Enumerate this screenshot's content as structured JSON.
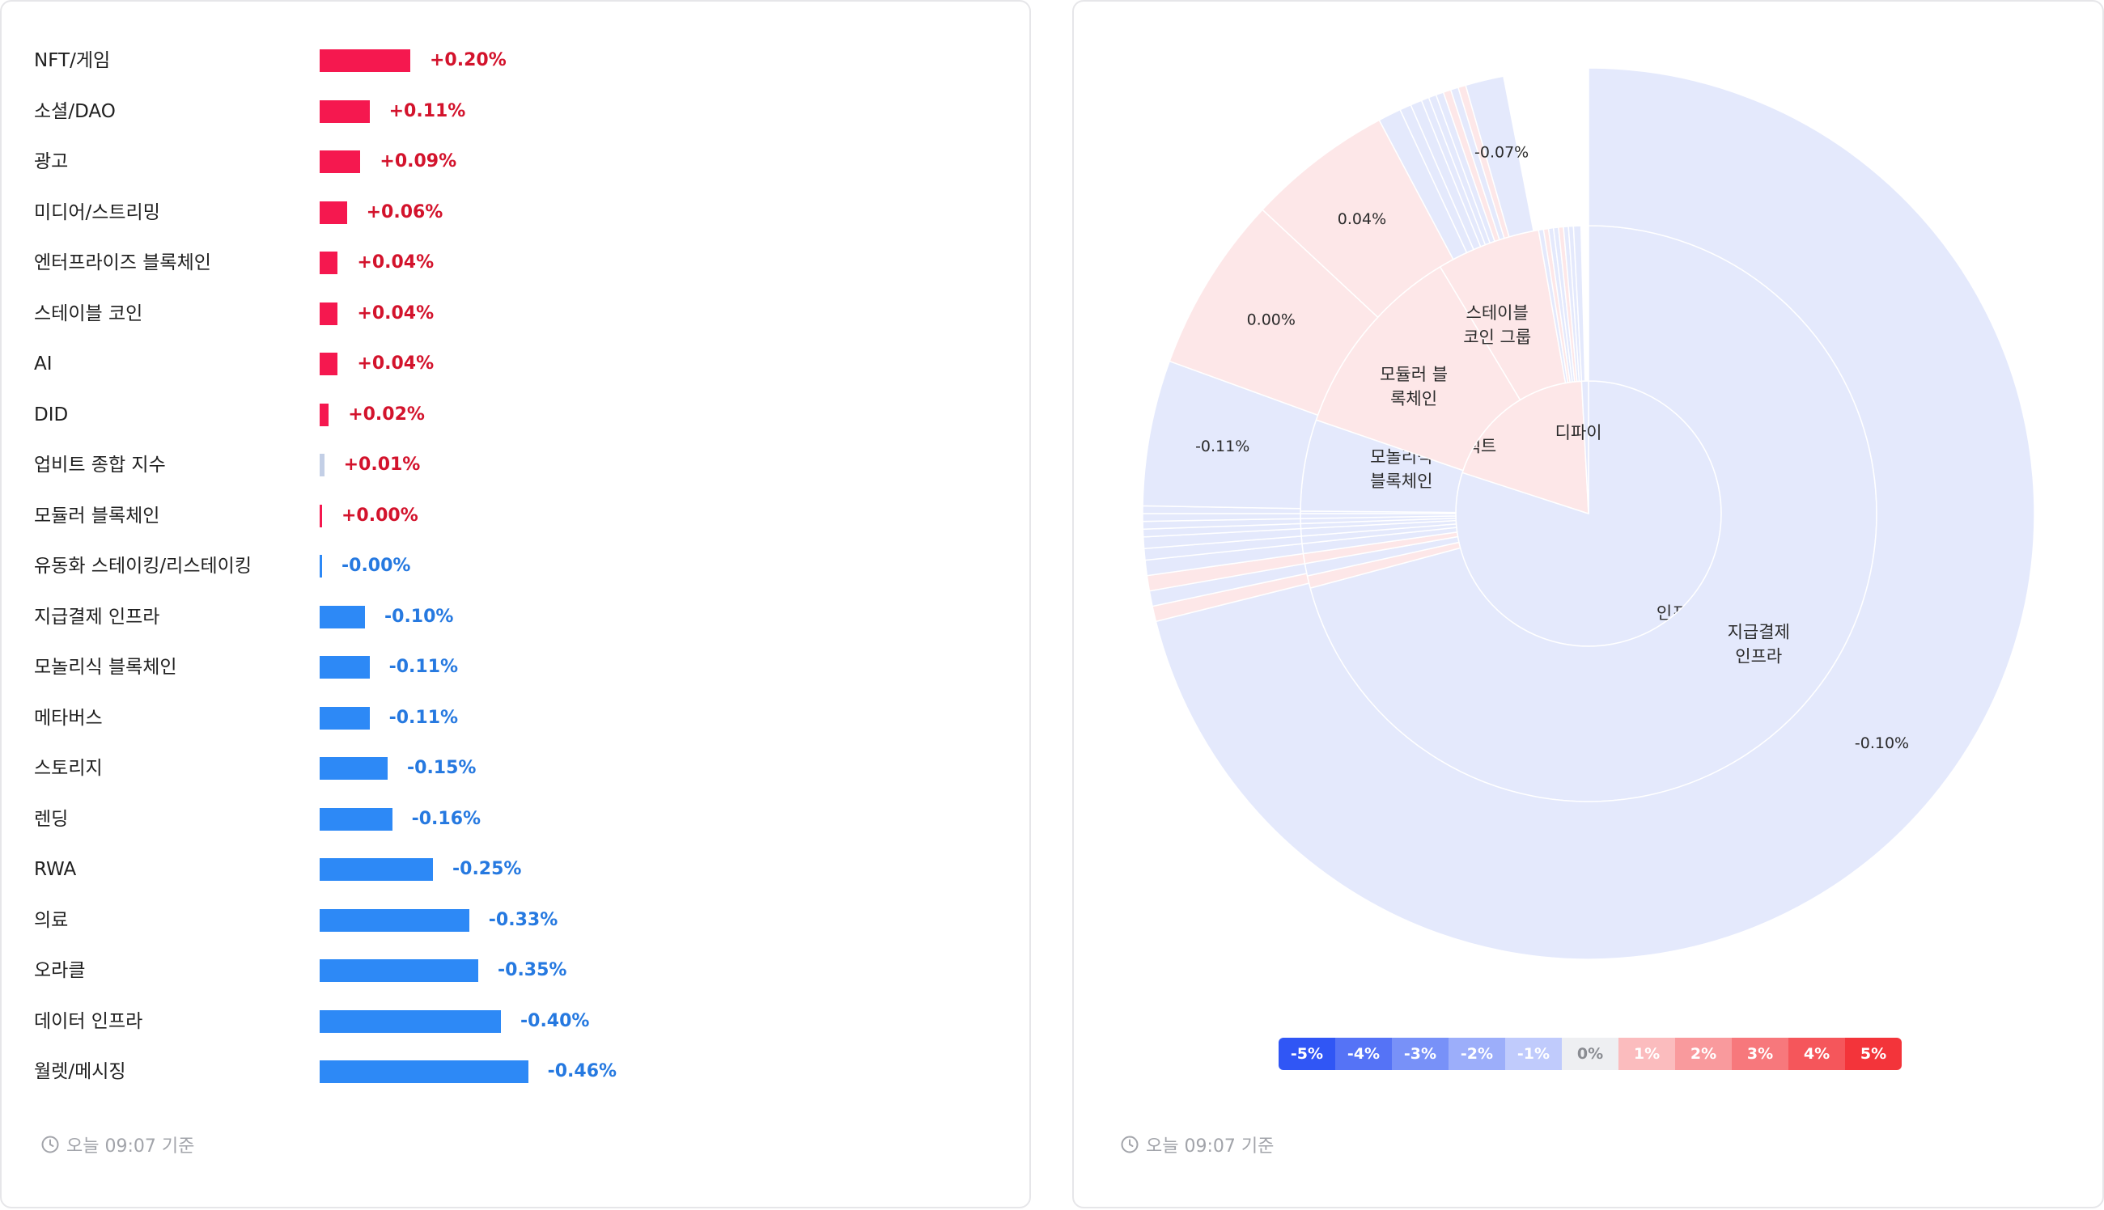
{
  "colors": {
    "up": "#f5184f",
    "down": "#2d89f6",
    "up_text": "#d3132c",
    "down_text": "#2679e0",
    "positive_fill": "#fde7e8",
    "negative_fill": "#e4e9fc",
    "divider": "#ffffff"
  },
  "bar_chart": {
    "timestamp": "오늘 09:07 기준",
    "chart_data": {
      "type": "bar",
      "orientation": "horizontal",
      "categories": [
        "NFT/게임",
        "소셜/DAO",
        "광고",
        "미디어/스트리밍",
        "엔터프라이즈 블록체인",
        "스테이블 코인",
        "AI",
        "DID",
        "업비트 종합 지수",
        "모듈러 블록체인",
        "유동화 스테이킹/리스테이킹",
        "지급결제 인프라",
        "모놀리식 블록체인",
        "메타버스",
        "스토리지",
        "렌딩",
        "RWA",
        "의료",
        "오라클",
        "데이터 인프라",
        "월렛/메시징"
      ],
      "values": [
        0.2,
        0.11,
        0.09,
        0.06,
        0.04,
        0.04,
        0.04,
        0.02,
        0.01,
        0.0,
        -0.0,
        -0.1,
        -0.11,
        -0.11,
        -0.15,
        -0.16,
        -0.25,
        -0.33,
        -0.35,
        -0.4,
        -0.46
      ],
      "value_labels": [
        "+0.20%",
        "+0.11%",
        "+0.09%",
        "+0.06%",
        "+0.04%",
        "+0.04%",
        "+0.04%",
        "+0.02%",
        "+0.01%",
        "+0.00%",
        "-0.00%",
        "-0.10%",
        "-0.11%",
        "-0.11%",
        "-0.15%",
        "-0.16%",
        "-0.25%",
        "-0.33%",
        "-0.35%",
        "-0.40%",
        "-0.46%"
      ],
      "title": "",
      "xlabel": "",
      "ylabel": ""
    }
  },
  "sunburst_chart": {
    "timestamp": "오늘 09:07 기준",
    "legend": [
      {
        "label": "-5%",
        "color": "#3056f5"
      },
      {
        "label": "-4%",
        "color": "#5573f6"
      },
      {
        "label": "-3%",
        "color": "#7891f8"
      },
      {
        "label": "-2%",
        "color": "#9caefa"
      },
      {
        "label": "-1%",
        "color": "#c0cbfc"
      },
      {
        "label": "0%",
        "color": "#eeeff2",
        "text": "#8a8c92"
      },
      {
        "label": "1%",
        "color": "#fbbcbe"
      },
      {
        "label": "2%",
        "color": "#f99a9d"
      },
      {
        "label": "3%",
        "color": "#f7787c"
      },
      {
        "label": "4%",
        "color": "#f5565b"
      },
      {
        "label": "5%",
        "color": "#f3343a"
      }
    ],
    "chart_data": {
      "type": "sunburst",
      "title": "",
      "rings": [
        {
          "name": "inner",
          "segments": [
            {
              "label": "인프라",
              "angle": 288,
              "sign": "negative"
            },
            {
              "label": "스마트 컨트랙트\n플랫폼",
              "angle": 69,
              "sign": "positive"
            },
            {
              "label": "디파이",
              "angle": 3,
              "sign": "negative"
            }
          ]
        },
        {
          "name": "middle",
          "segments": [
            {
              "label": "지급결제\n인프라",
              "angle": 255,
              "sign": "negative"
            },
            {
              "label": "",
              "angle": 2.5,
              "sign": "positive"
            },
            {
              "label": "",
              "angle": 2.5,
              "sign": "negative"
            },
            {
              "label": "",
              "angle": 2,
              "sign": "positive"
            },
            {
              "label": "",
              "angle": 2,
              "sign": "negative"
            },
            {
              "label": "",
              "angle": 1.5,
              "sign": "negative"
            },
            {
              "label": "",
              "angle": 1.5,
              "sign": "negative"
            },
            {
              "label": "",
              "angle": 1,
              "sign": "negative"
            },
            {
              "label": "",
              "angle": 1,
              "sign": "negative"
            },
            {
              "label": "",
              "angle": 1,
              "sign": "negative"
            },
            {
              "label": "",
              "angle": 0.5,
              "sign": "negative"
            },
            {
              "label": "모놀리식\n블록체인",
              "angle": 18.5,
              "sign": "negative"
            },
            {
              "label": "모듈러 블\n록체인",
              "angle": 40,
              "sign": "positive"
            },
            {
              "label": "스테이블\n코인 그룹",
              "angle": 21,
              "sign": "positive"
            },
            {
              "label": "",
              "angle": 1,
              "sign": "negative"
            },
            {
              "label": "",
              "angle": 1,
              "sign": "positive"
            },
            {
              "label": "",
              "angle": 1,
              "sign": "negative"
            },
            {
              "label": "",
              "angle": 1,
              "sign": "negative"
            },
            {
              "label": "",
              "angle": 1,
              "sign": "positive"
            },
            {
              "label": "",
              "angle": 1,
              "sign": "negative"
            },
            {
              "label": "",
              "angle": 1,
              "sign": "negative"
            },
            {
              "label": "",
              "angle": 1.5,
              "sign": "negative"
            }
          ]
        },
        {
          "name": "outer",
          "segments": [
            {
              "label": "-0.10%",
              "angle": 256,
              "sign": "negative"
            },
            {
              "label": "",
              "angle": 2,
              "sign": "positive"
            },
            {
              "label": "",
              "angle": 2,
              "sign": "negative"
            },
            {
              "label": "",
              "angle": 2,
              "sign": "positive"
            },
            {
              "label": "",
              "angle": 2,
              "sign": "negative"
            },
            {
              "label": "",
              "angle": 1.5,
              "sign": "negative"
            },
            {
              "label": "",
              "angle": 1.5,
              "sign": "negative"
            },
            {
              "label": "",
              "angle": 1,
              "sign": "negative"
            },
            {
              "label": "",
              "angle": 1,
              "sign": "negative"
            },
            {
              "label": "",
              "angle": 1,
              "sign": "negative"
            },
            {
              "label": "",
              "angle": 1,
              "sign": "negative"
            },
            {
              "label": "-0.11%",
              "angle": 19,
              "sign": "negative"
            },
            {
              "label": "0.00%",
              "angle": 23,
              "sign": "positive"
            },
            {
              "label": "0.04%",
              "angle": 19,
              "sign": "positive"
            },
            {
              "label": "",
              "angle": 3,
              "sign": "negative"
            },
            {
              "label": "",
              "angle": 1.5,
              "sign": "negative"
            },
            {
              "label": "",
              "angle": 1.5,
              "sign": "negative"
            },
            {
              "label": "",
              "angle": 1,
              "sign": "negative"
            },
            {
              "label": "",
              "angle": 1,
              "sign": "negative"
            },
            {
              "label": "",
              "angle": 1,
              "sign": "negative"
            },
            {
              "label": "",
              "angle": 1,
              "sign": "positive"
            },
            {
              "label": "",
              "angle": 1,
              "sign": "negative"
            },
            {
              "label": "",
              "angle": 1,
              "sign": "positive"
            },
            {
              "label": "-0.07%",
              "angle": 5,
              "sign": "negative"
            }
          ]
        }
      ]
    }
  }
}
